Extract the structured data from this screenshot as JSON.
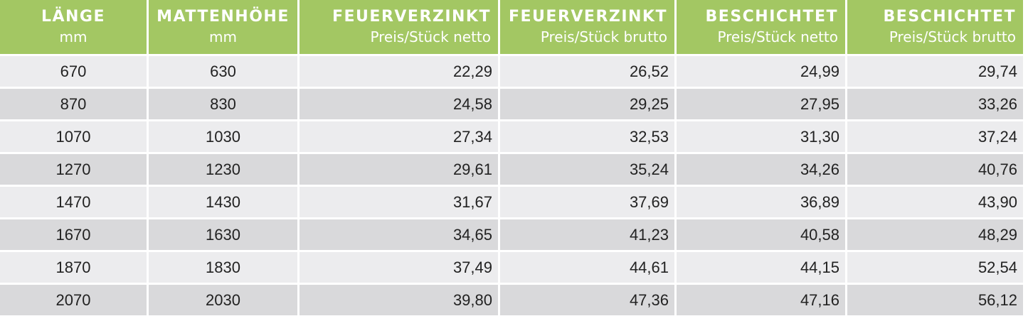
{
  "columns": [
    {
      "title": "LÄNGE",
      "subtitle": "mm"
    },
    {
      "title": "MATTENHÖHE",
      "subtitle": "mm"
    },
    {
      "title": "FEUERVERZINKT",
      "subtitle": "Preis/Stück netto"
    },
    {
      "title": "FEUERVERZINKT",
      "subtitle": "Preis/Stück brutto"
    },
    {
      "title": "BESCHICHTET",
      "subtitle": "Preis/Stück netto"
    },
    {
      "title": "BESCHICHTET",
      "subtitle": "Preis/Stück brutto"
    }
  ],
  "rows": [
    [
      "670",
      "630",
      "22,29",
      "26,52",
      "24,99",
      "29,74"
    ],
    [
      "870",
      "830",
      "24,58",
      "29,25",
      "27,95",
      "33,26"
    ],
    [
      "1070",
      "1030",
      "27,34",
      "32,53",
      "31,30",
      "37,24"
    ],
    [
      "1270",
      "1230",
      "29,61",
      "35,24",
      "34,26",
      "40,76"
    ],
    [
      "1470",
      "1430",
      "31,67",
      "37,69",
      "36,89",
      "43,90"
    ],
    [
      "1670",
      "1630",
      "34,65",
      "41,23",
      "40,58",
      "48,29"
    ],
    [
      "1870",
      "1830",
      "37,49",
      "44,61",
      "44,15",
      "52,54"
    ],
    [
      "2070",
      "2030",
      "39,80",
      "47,36",
      "47,16",
      "56,12"
    ]
  ],
  "colors": {
    "header_bg": "#a3c763",
    "header_text": "#ffffff",
    "row_light": "#ececee",
    "row_dark": "#d9d9db"
  }
}
